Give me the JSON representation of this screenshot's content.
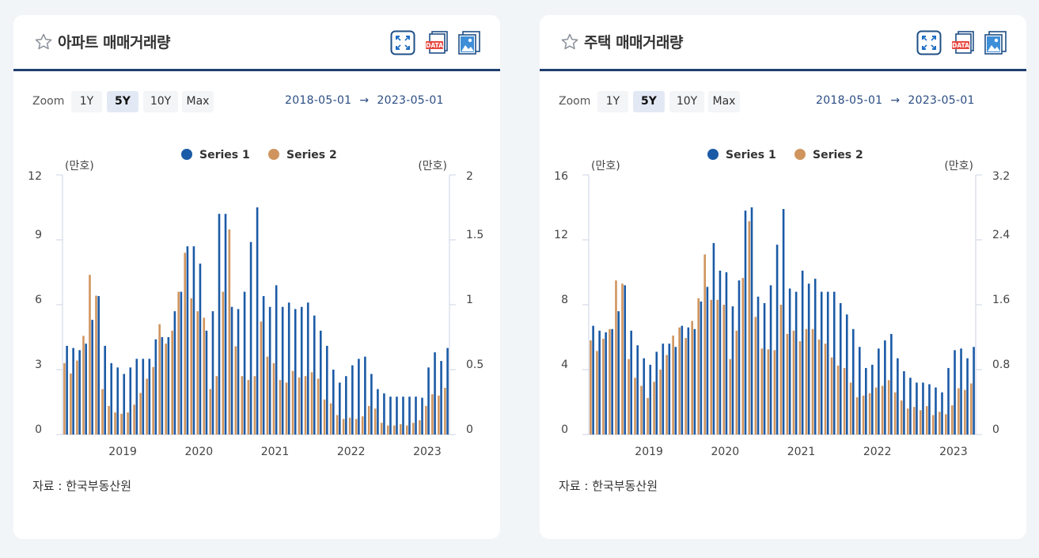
{
  "colors": {
    "series1": "#1b5aa6",
    "series2": "#d0955f",
    "header_rule": "#1f3f6e",
    "axis_line": "#ccd3e6"
  },
  "icons": {
    "favorite": "star-outline-icon",
    "fullscreen": "expand-icon",
    "download_data": "data-file-icon",
    "download_image": "image-file-icon"
  },
  "zoom": {
    "label": "Zoom",
    "options": [
      "1Y",
      "5Y",
      "10Y",
      "Max"
    ],
    "selected": "5Y"
  },
  "range": {
    "from": "2018-05-01",
    "arrow": "→",
    "to": "2023-05-01"
  },
  "source": "자료 :  한국부동산원",
  "cards": [
    {
      "title": "아파트 매매거래량"
    },
    {
      "title": "주택 매매거래량"
    }
  ],
  "chart_data": [
    {
      "type": "bar",
      "title": "아파트 매매거래량",
      "legend": [
        "Series 1",
        "Series 2"
      ],
      "legend_position": "top-center",
      "y_left_label": "(만호)",
      "y_right_label": "(만호)",
      "y_left_ticks": [
        "0",
        "3",
        "6",
        "9",
        "12"
      ],
      "y_right_ticks": [
        "0",
        "0.5",
        "1",
        "1.5",
        "2"
      ],
      "ylim_left": [
        0,
        12
      ],
      "ylim_right": [
        0,
        2
      ],
      "x_ticks": [
        "2019",
        "2020",
        "2021",
        "2022",
        "2023"
      ],
      "x_tick_months": [
        "2019-01",
        "2020-01",
        "2021-01",
        "2022-01",
        "2023-01"
      ],
      "months": [
        "2018-05",
        "2018-06",
        "2018-07",
        "2018-08",
        "2018-09",
        "2018-10",
        "2018-11",
        "2018-12",
        "2019-01",
        "2019-02",
        "2019-03",
        "2019-04",
        "2019-05",
        "2019-06",
        "2019-07",
        "2019-08",
        "2019-09",
        "2019-10",
        "2019-11",
        "2019-12",
        "2020-01",
        "2020-02",
        "2020-03",
        "2020-04",
        "2020-05",
        "2020-06",
        "2020-07",
        "2020-08",
        "2020-09",
        "2020-10",
        "2020-11",
        "2020-12",
        "2021-01",
        "2021-02",
        "2021-03",
        "2021-04",
        "2021-05",
        "2021-06",
        "2021-07",
        "2021-08",
        "2021-09",
        "2021-10",
        "2021-11",
        "2021-12",
        "2022-01",
        "2022-02",
        "2022-03",
        "2022-04",
        "2022-05",
        "2022-06",
        "2022-07",
        "2022-08",
        "2022-09",
        "2022-10",
        "2022-11",
        "2022-12",
        "2023-01",
        "2023-02",
        "2023-03",
        "2023-04",
        "2023-05"
      ],
      "series": [
        {
          "name": "Series 1",
          "axis": "left",
          "values": [
            4.1,
            4.0,
            3.9,
            4.2,
            5.3,
            6.4,
            4.1,
            3.3,
            3.1,
            2.8,
            3.1,
            3.5,
            3.5,
            3.5,
            4.4,
            4.5,
            4.5,
            5.7,
            6.6,
            8.7,
            8.7,
            7.9,
            4.8,
            5.7,
            10.2,
            10.2,
            5.9,
            5.8,
            6.6,
            8.9,
            10.5,
            6.4,
            5.9,
            6.9,
            5.9,
            6.1,
            5.8,
            5.9,
            6.1,
            5.5,
            4.8,
            4.1,
            3.0,
            2.4,
            2.7,
            3.2,
            3.5,
            3.6,
            2.8,
            2.1,
            1.9,
            1.75,
            1.75,
            1.75,
            1.75,
            1.75,
            1.7,
            3.1,
            3.8,
            3.4,
            4.0
          ]
        },
        {
          "name": "Series 2",
          "axis": "right",
          "values": [
            0.55,
            0.47,
            0.57,
            0.76,
            1.23,
            1.07,
            0.35,
            0.22,
            0.17,
            0.16,
            0.17,
            0.23,
            0.32,
            0.43,
            0.52,
            0.85,
            0.7,
            0.8,
            1.1,
            1.4,
            1.05,
            0.95,
            0.9,
            0.35,
            0.45,
            1.1,
            1.58,
            0.68,
            0.45,
            0.42,
            0.45,
            0.87,
            0.6,
            0.55,
            0.42,
            0.4,
            0.49,
            0.44,
            0.45,
            0.48,
            0.43,
            0.27,
            0.24,
            0.15,
            0.12,
            0.13,
            0.12,
            0.14,
            0.22,
            0.2,
            0.09,
            0.07,
            0.07,
            0.08,
            0.07,
            0.09,
            0.11,
            0.22,
            0.31,
            0.3,
            0.36
          ]
        }
      ]
    },
    {
      "type": "bar",
      "title": "주택 매매거래량",
      "legend": [
        "Series 1",
        "Series 2"
      ],
      "legend_position": "top-center",
      "y_left_label": "(만호)",
      "y_right_label": "(만호)",
      "y_left_ticks": [
        "0",
        "4",
        "8",
        "12",
        "16"
      ],
      "y_right_ticks": [
        "0",
        "0.8",
        "1.6",
        "2.4",
        "3.2"
      ],
      "ylim_left": [
        0,
        16
      ],
      "ylim_right": [
        0,
        3.2
      ],
      "x_ticks": [
        "2019",
        "2020",
        "2021",
        "2022",
        "2023"
      ],
      "x_tick_months": [
        "2019-01",
        "2020-01",
        "2021-01",
        "2022-01",
        "2023-01"
      ],
      "months": [
        "2018-05",
        "2018-06",
        "2018-07",
        "2018-08",
        "2018-09",
        "2018-10",
        "2018-11",
        "2018-12",
        "2019-01",
        "2019-02",
        "2019-03",
        "2019-04",
        "2019-05",
        "2019-06",
        "2019-07",
        "2019-08",
        "2019-09",
        "2019-10",
        "2019-11",
        "2019-12",
        "2020-01",
        "2020-02",
        "2020-03",
        "2020-04",
        "2020-05",
        "2020-06",
        "2020-07",
        "2020-08",
        "2020-09",
        "2020-10",
        "2020-11",
        "2020-12",
        "2021-01",
        "2021-02",
        "2021-03",
        "2021-04",
        "2021-05",
        "2021-06",
        "2021-07",
        "2021-08",
        "2021-09",
        "2021-10",
        "2021-11",
        "2021-12",
        "2022-01",
        "2022-02",
        "2022-03",
        "2022-04",
        "2022-05",
        "2022-06",
        "2022-07",
        "2022-08",
        "2022-09",
        "2022-10",
        "2022-11",
        "2022-12",
        "2023-01",
        "2023-02",
        "2023-03",
        "2023-04",
        "2023-05"
      ],
      "series": [
        {
          "name": "Series 1",
          "axis": "left",
          "values": [
            6.7,
            6.4,
            6.3,
            6.5,
            7.6,
            9.2,
            6.4,
            5.5,
            4.7,
            4.3,
            5.1,
            5.6,
            5.6,
            5.4,
            6.7,
            6.6,
            6.5,
            8.2,
            9.1,
            11.8,
            10.1,
            10.0,
            7.9,
            9.5,
            13.8,
            14.0,
            8.5,
            8.1,
            9.2,
            11.7,
            13.9,
            9.0,
            8.8,
            10.1,
            9.3,
            9.6,
            8.8,
            8.8,
            8.8,
            8.1,
            7.4,
            6.5,
            5.4,
            4.1,
            4.3,
            5.3,
            5.8,
            6.2,
            4.7,
            3.9,
            3.5,
            3.2,
            3.2,
            3.1,
            2.9,
            2.6,
            4.1,
            5.2,
            5.3,
            4.7,
            5.4
          ]
        },
        {
          "name": "Series 2",
          "axis": "right",
          "values": [
            1.16,
            1.03,
            1.18,
            1.3,
            1.9,
            1.86,
            0.93,
            0.7,
            0.6,
            0.45,
            0.65,
            0.8,
            0.98,
            1.22,
            1.32,
            1.19,
            1.4,
            1.68,
            2.22,
            1.66,
            1.66,
            1.6,
            0.93,
            1.28,
            1.93,
            2.63,
            1.45,
            1.06,
            1.05,
            1.04,
            1.6,
            1.24,
            1.28,
            1.15,
            1.3,
            1.3,
            1.17,
            1.12,
            0.95,
            0.85,
            0.82,
            0.64,
            0.46,
            0.48,
            0.51,
            0.58,
            0.6,
            0.67,
            0.52,
            0.42,
            0.32,
            0.34,
            0.3,
            0.35,
            0.24,
            0.28,
            0.25,
            0.36,
            0.57,
            0.55,
            0.63
          ]
        }
      ]
    }
  ]
}
